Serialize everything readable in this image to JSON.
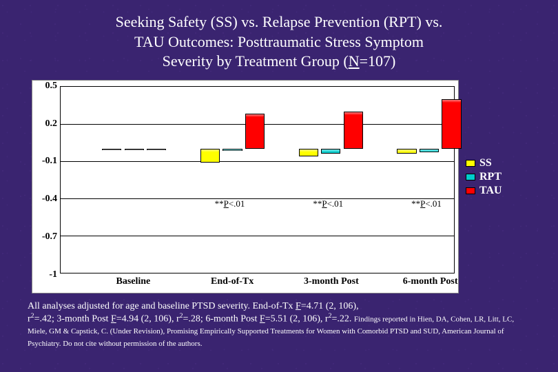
{
  "title": {
    "line1": "Seeking Safety (SS) vs. Relapse Prevention (RPT) vs.",
    "line2": "TAU Outcomes: Posttraumatic Stress Symptom",
    "line3_pre": "Severity by Treatment Group (",
    "line3_N": "N",
    "line3_post": "=107)",
    "fontsize": 22,
    "color": "#ffffff"
  },
  "chart": {
    "type": "bar",
    "background_color": "#ffffff",
    "grid_color": "#000000",
    "ylim_min": -1.0,
    "ylim_max": 0.5,
    "yticks": [
      0.5,
      0.2,
      -0.1,
      -0.4,
      -0.7,
      -1
    ],
    "ytick_labels": [
      "0.5",
      "0.2",
      "-0.1",
      "-0.4",
      "-0.7",
      "-1"
    ],
    "ytick_fontsize": 14,
    "categories": [
      "Baseline",
      "End-of-Tx",
      "3-month Post",
      "6-month Post"
    ],
    "xtick_fontsize": 14,
    "series": [
      {
        "name": "SS",
        "color": "#ffff00",
        "values": [
          0,
          -0.11,
          -0.06,
          -0.04
        ]
      },
      {
        "name": "RPT",
        "color": "#00cccc",
        "values": [
          0,
          -0.02,
          -0.04,
          -0.03
        ]
      },
      {
        "name": "TAU",
        "color": "#ff0000",
        "values": [
          0,
          0.28,
          0.3,
          0.4
        ]
      }
    ],
    "bar_border": "#000000",
    "cluster_positions_pct": [
      9,
      34,
      59,
      84
    ],
    "significance": {
      "label": "**P<.01",
      "at_categories": [
        1,
        2,
        3
      ],
      "y_value": -0.4,
      "fontsize": 13
    }
  },
  "legend": {
    "items": [
      {
        "label": "SS",
        "color": "#ffff00"
      },
      {
        "label": "RPT",
        "color": "#00cccc"
      },
      {
        "label": "TAU",
        "color": "#ff0000"
      }
    ],
    "fontsize": 16,
    "label_color": "#ffffff"
  },
  "caption": {
    "text1_pre": "All analyses adjusted for age and baseline PTSD severity. End-of-Tx ",
    "F1_label": "F",
    "F1_post": "=4.71 (2, 106),",
    "r2_1": "r",
    "r2_1_post": "=.42; 3-month Post ",
    "F2_label": "F",
    "F2_post": "=4.94 (2, 106), r",
    "r2_2_post": "=.28; 6-month Post ",
    "F3_label": "F",
    "F3_post": "=5.51 (2, 106), r",
    "r2_3_post": "=.22. ",
    "small": "Findings reported in Hien, DA, Cohen, LR, Litt, LC, Miele, GM & Capstick, C. (Under Revision), Promising Empirically Supported Treatments for Women with Comorbid PTSD and SUD, American Journal of Psychiatry. Do not cite without permission of the authors."
  }
}
